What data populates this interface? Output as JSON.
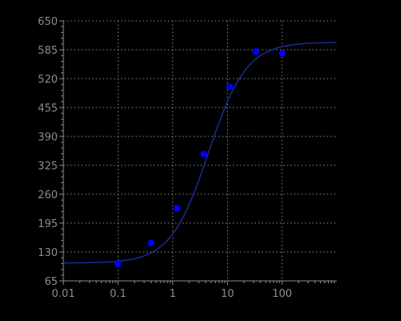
{
  "chart_data": {
    "type": "scatter",
    "title": "",
    "xlabel": "",
    "ylabel": "",
    "x_scale": "log",
    "xlim": [
      0.01,
      1000
    ],
    "ylim": [
      65,
      650
    ],
    "x_ticks": [
      0.01,
      0.1,
      1,
      10,
      100
    ],
    "x_tick_labels": [
      "0.01",
      "0.1",
      "1",
      "10",
      "100"
    ],
    "y_ticks": [
      65,
      130,
      195,
      260,
      325,
      390,
      455,
      520,
      585,
      650
    ],
    "y_tick_labels": [
      "65",
      "130",
      "195",
      "260",
      "325",
      "390",
      "455",
      "520",
      "585",
      "650"
    ],
    "grid": true,
    "series": [
      {
        "type": "scatter",
        "color": "#0000ff",
        "points": [
          {
            "x": 0.1,
            "y": 103
          },
          {
            "x": 0.4,
            "y": 150
          },
          {
            "x": 1.2,
            "y": 228
          },
          {
            "x": 3.7,
            "y": 350
          },
          {
            "x": 11,
            "y": 502
          },
          {
            "x": 33,
            "y": 581
          },
          {
            "x": 100,
            "y": 577
          }
        ]
      },
      {
        "type": "line",
        "color": "#1c2f9c",
        "fit": {
          "bottom": 105,
          "top": 602,
          "ec50": 4.5,
          "hill": 1.25
        }
      }
    ]
  }
}
